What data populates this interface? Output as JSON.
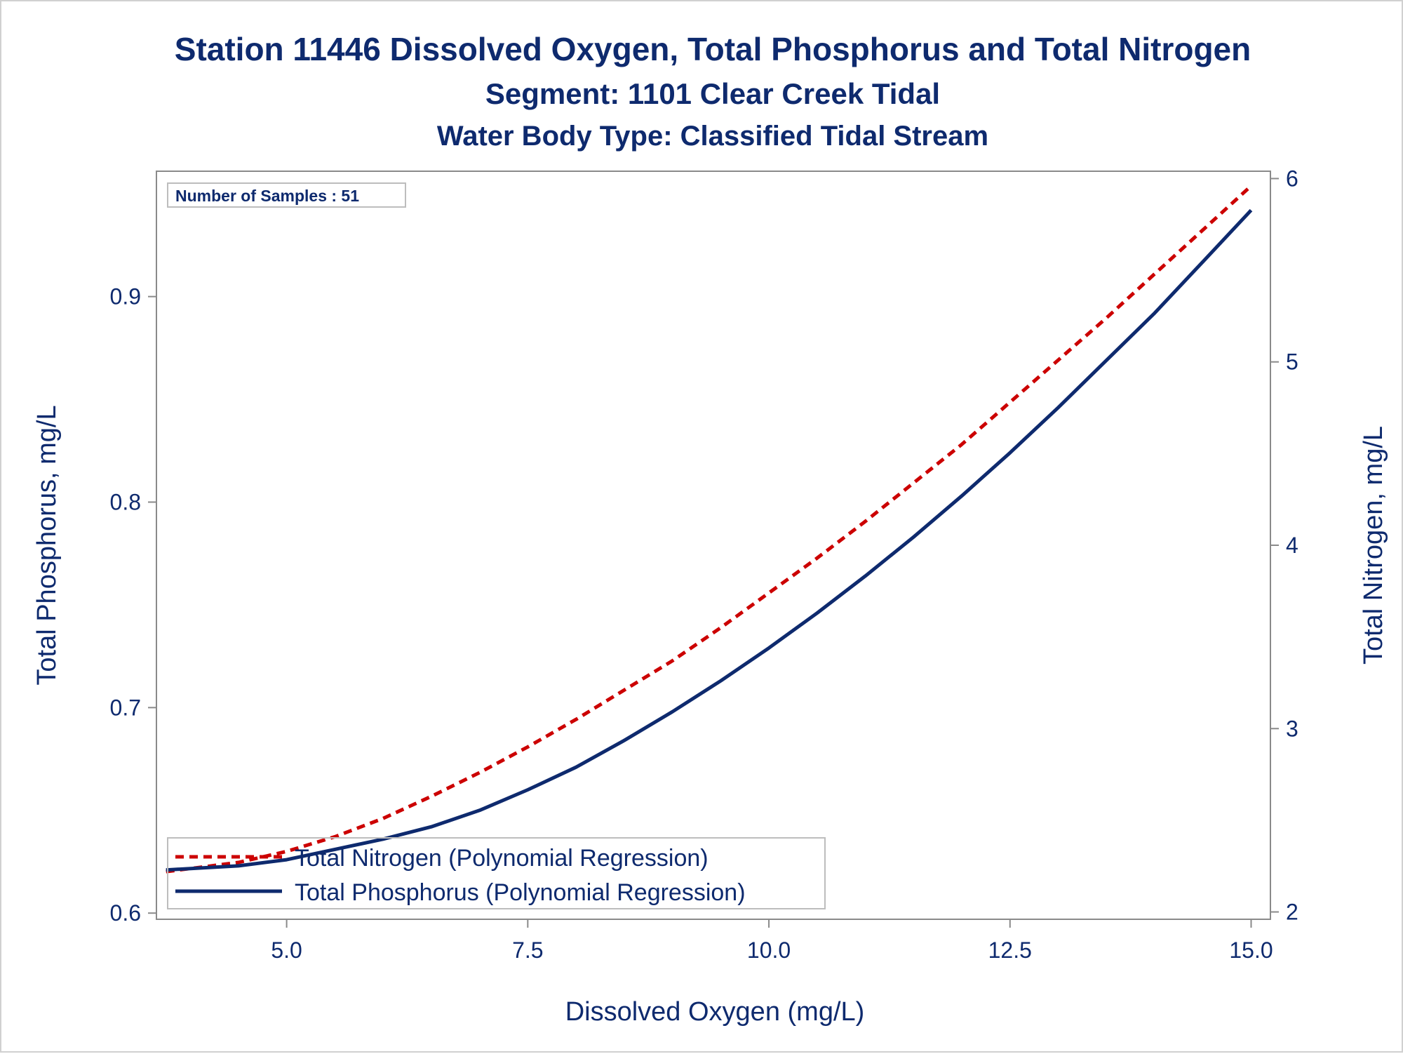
{
  "chart_data": {
    "type": "line",
    "title": "Station 11446  Dissolved Oxygen, Total Phosphorus and Total Nitrogen",
    "subtitle": "Segment: 1101  Clear Creek Tidal",
    "subtitle2": "Water Body Type: Classified Tidal Stream",
    "xlabel": "Dissolved Oxygen (mg/L)",
    "ylabel_left": "Total Phosphorus, mg/L",
    "ylabel_right": "Total Nitrogen, mg/L",
    "xlim": [
      3.65,
      15.2
    ],
    "ylim_left": [
      0.597,
      0.961
    ],
    "ylim_right": [
      1.96,
      6.04
    ],
    "xticks": [
      "5.0",
      "7.5",
      "10.0",
      "12.5",
      "15.0"
    ],
    "xtick_values": [
      5.0,
      7.5,
      10.0,
      12.5,
      15.0
    ],
    "yticks_left": [
      "0.6",
      "0.7",
      "0.8",
      "0.9"
    ],
    "ytick_left_values": [
      0.6,
      0.7,
      0.8,
      0.9
    ],
    "yticks_right": [
      "2",
      "3",
      "4",
      "5",
      "6"
    ],
    "ytick_right_values": [
      2,
      3,
      4,
      5,
      6
    ],
    "annotation": "Number of Samples : 51",
    "legend_position": "bottom-left",
    "series": [
      {
        "name": "Total Nitrogen (Polynomial Regression)",
        "axis": "right",
        "style": "dashed",
        "color": "#cc0000",
        "x": [
          3.75,
          4.5,
          5.0,
          5.5,
          6.0,
          6.5,
          7.0,
          7.5,
          8.0,
          8.5,
          9.0,
          9.5,
          10.0,
          10.5,
          11.0,
          11.5,
          12.0,
          12.5,
          13.0,
          13.5,
          14.0,
          14.5,
          15.0
        ],
        "y": [
          2.22,
          2.27,
          2.33,
          2.41,
          2.51,
          2.63,
          2.76,
          2.9,
          3.05,
          3.21,
          3.37,
          3.55,
          3.74,
          3.93,
          4.13,
          4.34,
          4.55,
          4.78,
          5.01,
          5.24,
          5.48,
          5.72,
          5.96
        ]
      },
      {
        "name": "Total Phosphorus (Polynomial Regression)",
        "axis": "left",
        "style": "solid",
        "color": "#0e2a6e",
        "x": [
          3.75,
          4.5,
          5.0,
          5.5,
          6.0,
          6.5,
          7.0,
          7.5,
          8.0,
          8.5,
          9.0,
          9.5,
          10.0,
          10.5,
          11.0,
          11.5,
          12.0,
          12.5,
          13.0,
          13.5,
          14.0,
          14.5,
          15.0
        ],
        "y": [
          0.621,
          0.623,
          0.626,
          0.631,
          0.636,
          0.642,
          0.65,
          0.66,
          0.671,
          0.684,
          0.698,
          0.713,
          0.729,
          0.746,
          0.764,
          0.783,
          0.803,
          0.824,
          0.846,
          0.869,
          0.892,
          0.917,
          0.942
        ]
      }
    ]
  }
}
